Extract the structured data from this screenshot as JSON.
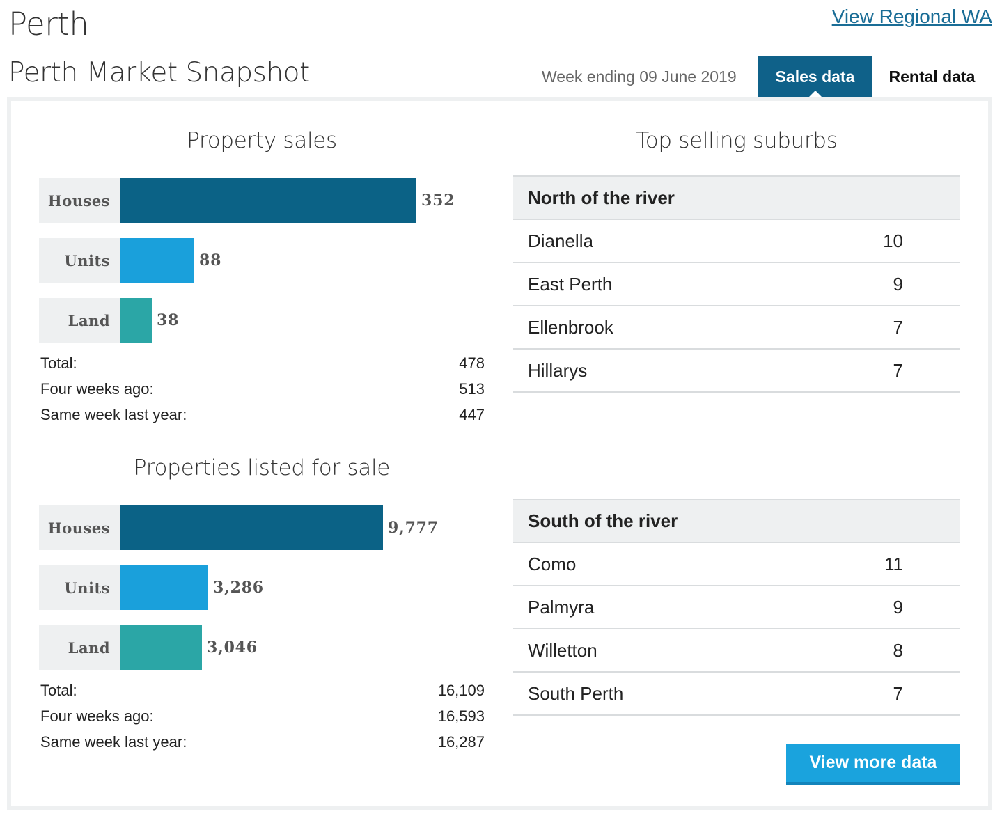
{
  "header": {
    "city": "Perth",
    "regional_link": "View Regional WA",
    "snapshot_title": "Perth Market Snapshot",
    "week_ending": "Week ending 09 June 2019"
  },
  "tabs": {
    "sales": "Sales data",
    "rental": "Rental data",
    "active": "Sales data"
  },
  "colors": {
    "houses": "#0b6286",
    "units": "#1aa0db",
    "land": "#2ba6a6",
    "accent": "#0f6189"
  },
  "property_sales": {
    "title": "Property sales",
    "bars": [
      {
        "label": "Houses",
        "value": 352,
        "display": "352",
        "color": "#0b6286"
      },
      {
        "label": "Units",
        "value": 88,
        "display": "88",
        "color": "#1aa0db"
      },
      {
        "label": "Land",
        "value": 38,
        "display": "38",
        "color": "#2ba6a6"
      }
    ],
    "stats": [
      {
        "label": "Total:",
        "value": "478"
      },
      {
        "label": "Four weeks ago:",
        "value": "513"
      },
      {
        "label": "Same week last year:",
        "value": "447"
      }
    ]
  },
  "listed_for_sale": {
    "title": "Properties listed for sale",
    "bars": [
      {
        "label": "Houses",
        "value": 9777,
        "display": "9,777",
        "color": "#0b6286"
      },
      {
        "label": "Units",
        "value": 3286,
        "display": "3,286",
        "color": "#1aa0db"
      },
      {
        "label": "Land",
        "value": 3046,
        "display": "3,046",
        "color": "#2ba6a6"
      }
    ],
    "stats": [
      {
        "label": "Total:",
        "value": "16,109"
      },
      {
        "label": "Four weeks ago:",
        "value": "16,593"
      },
      {
        "label": "Same week last year:",
        "value": "16,287"
      }
    ]
  },
  "top_suburbs": {
    "title": "Top selling suburbs",
    "north": {
      "heading": "North of the river",
      "rows": [
        {
          "name": "Dianella",
          "count": "10"
        },
        {
          "name": "East Perth",
          "count": "9"
        },
        {
          "name": "Ellenbrook",
          "count": "7"
        },
        {
          "name": "Hillarys",
          "count": "7"
        }
      ]
    },
    "south": {
      "heading": "South of the river",
      "rows": [
        {
          "name": "Como",
          "count": "11"
        },
        {
          "name": "Palmyra",
          "count": "9"
        },
        {
          "name": "Willetton",
          "count": "8"
        },
        {
          "name": "South Perth",
          "count": "7"
        }
      ]
    }
  },
  "actions": {
    "view_more": "View more data"
  }
}
